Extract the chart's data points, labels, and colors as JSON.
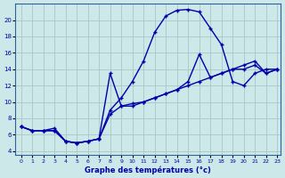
{
  "xlabel": "Graphe des températures (°c)",
  "bg_color": "#cce8e8",
  "line_color": "#0000aa",
  "xlim": [
    -0.5,
    23.3
  ],
  "ylim": [
    3.5,
    22
  ],
  "xticks": [
    0,
    1,
    2,
    3,
    4,
    5,
    6,
    7,
    8,
    9,
    10,
    11,
    12,
    13,
    14,
    15,
    16,
    17,
    18,
    19,
    20,
    21,
    22,
    23
  ],
  "yticks": [
    4,
    6,
    8,
    10,
    12,
    14,
    16,
    18,
    20
  ],
  "curve1_x": [
    0,
    1,
    2,
    3,
    4,
    5,
    6,
    7,
    8,
    9,
    10,
    11,
    12,
    13,
    14,
    15,
    16,
    17,
    18,
    19,
    20,
    21,
    22,
    23
  ],
  "curve1_y": [
    7.0,
    6.5,
    6.5,
    6.5,
    5.2,
    5.0,
    5.2,
    5.5,
    9.0,
    10.5,
    12.5,
    15.0,
    18.5,
    20.5,
    21.2,
    21.3,
    21.0,
    19.0,
    17.0,
    12.5,
    12.0,
    13.5,
    14.0,
    14.0
  ],
  "curve2_x": [
    0,
    1,
    2,
    3,
    4,
    5,
    6,
    7,
    8,
    9,
    10,
    11,
    12,
    13,
    14,
    15,
    16,
    17,
    18,
    19,
    20,
    21,
    22,
    23
  ],
  "curve2_y": [
    7.0,
    6.5,
    6.5,
    6.5,
    5.2,
    5.0,
    5.2,
    5.5,
    13.5,
    9.5,
    9.5,
    10.0,
    10.5,
    11.0,
    11.5,
    12.5,
    15.8,
    13.0,
    13.5,
    14.0,
    14.5,
    15.0,
    13.5,
    14.0
  ],
  "curve3_x": [
    0,
    1,
    2,
    3,
    4,
    5,
    6,
    7,
    8,
    9,
    10,
    11,
    12,
    13,
    14,
    15,
    16,
    17,
    18,
    19,
    20,
    21,
    22,
    23
  ],
  "curve3_y": [
    7.0,
    6.5,
    6.5,
    6.8,
    5.2,
    5.0,
    5.2,
    5.5,
    8.5,
    9.5,
    9.8,
    10.0,
    10.5,
    11.0,
    11.5,
    12.0,
    12.5,
    13.0,
    13.5,
    14.0,
    14.0,
    14.5,
    13.5,
    14.0
  ],
  "grid_color": "#a8c8c8",
  "marker": "+"
}
